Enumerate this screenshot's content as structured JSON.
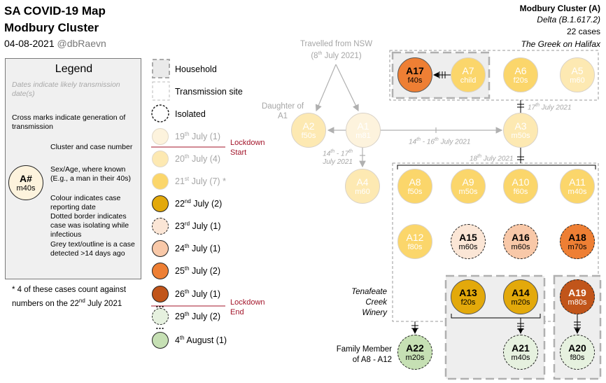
{
  "header": {
    "title": "SA COVID-19 Map",
    "subtitle": "Modbury Cluster",
    "date": "04-08-2021",
    "handle": "@dbRaevn"
  },
  "cluster_info": {
    "name": "Modbury Cluster (A)",
    "variant": "Delta (B.1.617.2)",
    "cases": "22 cases",
    "source": "The Greek on Halifax"
  },
  "legend": {
    "title": "Legend",
    "dates_note": "Dates indicate likely transmission date(s)",
    "cross_note": "Cross marks indicate generation of transmission",
    "sample_id": "A#",
    "sample_sub": "m40s",
    "cluster_note": "Cluster and case number",
    "sexage_note": "Sex/Age, where known (E.g., a man in their 40s)",
    "colour_note": "Colour indicates case reporting date",
    "dotted_note": "Dotted border indicates case was isolating while infectious",
    "grey_note": "Grey text/outline is a case detected >14 days ago",
    "footnote": "* 4 of these cases count against numbers on the 22nd July 2021"
  },
  "key": {
    "household": "Household",
    "transmission_site": "Transmission site",
    "isolated": "Isolated",
    "dates": [
      {
        "day": "19",
        "sup": "th",
        "rest": " July (1)",
        "color": "#fdf3dd",
        "faded": true
      },
      {
        "day": "20",
        "sup": "th",
        "rest": " July (4)",
        "color": "#fde9b2",
        "faded": true
      },
      {
        "day": "21",
        "sup": "st",
        "rest": " July (7) *",
        "color": "#fbd66b",
        "faded": true
      },
      {
        "day": "22",
        "sup": "nd",
        "rest": " July (2)",
        "color": "#e3a90b",
        "faded": false
      },
      {
        "day": "23",
        "sup": "rd",
        "rest": " July (1)",
        "color": "#fbe6d6",
        "faded": false,
        "dotted": true
      },
      {
        "day": "24",
        "sup": "th",
        "rest": " July (1)",
        "color": "#f8c8a8",
        "faded": false
      },
      {
        "day": "25",
        "sup": "th",
        "rest": " July (2)",
        "color": "#ee7f34",
        "faded": false
      },
      {
        "day": "26",
        "sup": "th",
        "rest": " July (1)",
        "color": "#c1551a",
        "faded": false
      },
      {
        "day": "29",
        "sup": "th",
        "rest": " July (2)",
        "color": "#e6f1df",
        "faded": false,
        "dotted": true
      },
      {
        "day": "4",
        "sup": "th",
        "rest": " August (1)",
        "color": "#c6e0b4",
        "faded": false
      }
    ],
    "lockdown_start": "Lockdown Start",
    "lockdown_end": "Lockdown End",
    "ellipsis": "…"
  },
  "map": {
    "travelled_from": "Travelled from NSW",
    "travelled_date_day": "8",
    "travelled_date_sup": "th",
    "travelled_date_rest": " July 2021",
    "daughter_of": "Daughter of A1",
    "date_a3_chain": "14th - 16th July 2021",
    "date_a1_a4": "14th - 17th July 2021",
    "date_17": "17th July 2021",
    "date_18": "18th July 2021",
    "tenafeate": "Tenafeate Creek Winery",
    "family": "Family Member of A8 - A12",
    "cases": [
      {
        "id": "A1",
        "sub": "m81",
        "color": "#fdf3dd",
        "style": "faded"
      },
      {
        "id": "A2",
        "sub": "f50s",
        "color": "#fde9b2",
        "style": "faded"
      },
      {
        "id": "A3",
        "sub": "m50s",
        "color": "#fde9b2",
        "style": "faded"
      },
      {
        "id": "A4",
        "sub": "m60",
        "color": "#fde9b2",
        "style": "faded"
      },
      {
        "id": "A5",
        "sub": "m60",
        "color": "#fde9b2",
        "style": "faded"
      },
      {
        "id": "A6",
        "sub": "f20s",
        "color": "#fbd66b",
        "style": "faded"
      },
      {
        "id": "A7",
        "sub": "child",
        "color": "#fbd66b",
        "style": "faded"
      },
      {
        "id": "A8",
        "sub": "f50s",
        "color": "#fbd66b",
        "style": "faded"
      },
      {
        "id": "A9",
        "sub": "m50s",
        "color": "#fbd66b",
        "style": "faded"
      },
      {
        "id": "A10",
        "sub": "f60s",
        "color": "#fbd66b",
        "style": "faded"
      },
      {
        "id": "A11",
        "sub": "m40s",
        "color": "#fbd66b",
        "style": "faded"
      },
      {
        "id": "A12",
        "sub": "f80s",
        "color": "#fbd66b",
        "style": "faded"
      },
      {
        "id": "A13",
        "sub": "f20s",
        "color": "#e3a90b",
        "style": "solid"
      },
      {
        "id": "A14",
        "sub": "m20s",
        "color": "#e3a90b",
        "style": "solid"
      },
      {
        "id": "A15",
        "sub": "m60s",
        "color": "#fbe6d6",
        "style": "dotted"
      },
      {
        "id": "A16",
        "sub": "m60s",
        "color": "#f8c8a8",
        "style": "dotted"
      },
      {
        "id": "A17",
        "sub": "f40s",
        "color": "#ee7f34",
        "style": "solid"
      },
      {
        "id": "A18",
        "sub": "m70s",
        "color": "#ee7f34",
        "style": "dotted"
      },
      {
        "id": "A19",
        "sub": "m80s",
        "color": "#c1551a",
        "style": "dotted"
      },
      {
        "id": "A20",
        "sub": "f80s",
        "color": "#e6f1df",
        "style": "dotted"
      },
      {
        "id": "A21",
        "sub": "m40s",
        "color": "#e6f1df",
        "style": "dotted"
      },
      {
        "id": "A22",
        "sub": "m20s",
        "color": "#c6e0b4",
        "style": "dotted"
      }
    ]
  }
}
